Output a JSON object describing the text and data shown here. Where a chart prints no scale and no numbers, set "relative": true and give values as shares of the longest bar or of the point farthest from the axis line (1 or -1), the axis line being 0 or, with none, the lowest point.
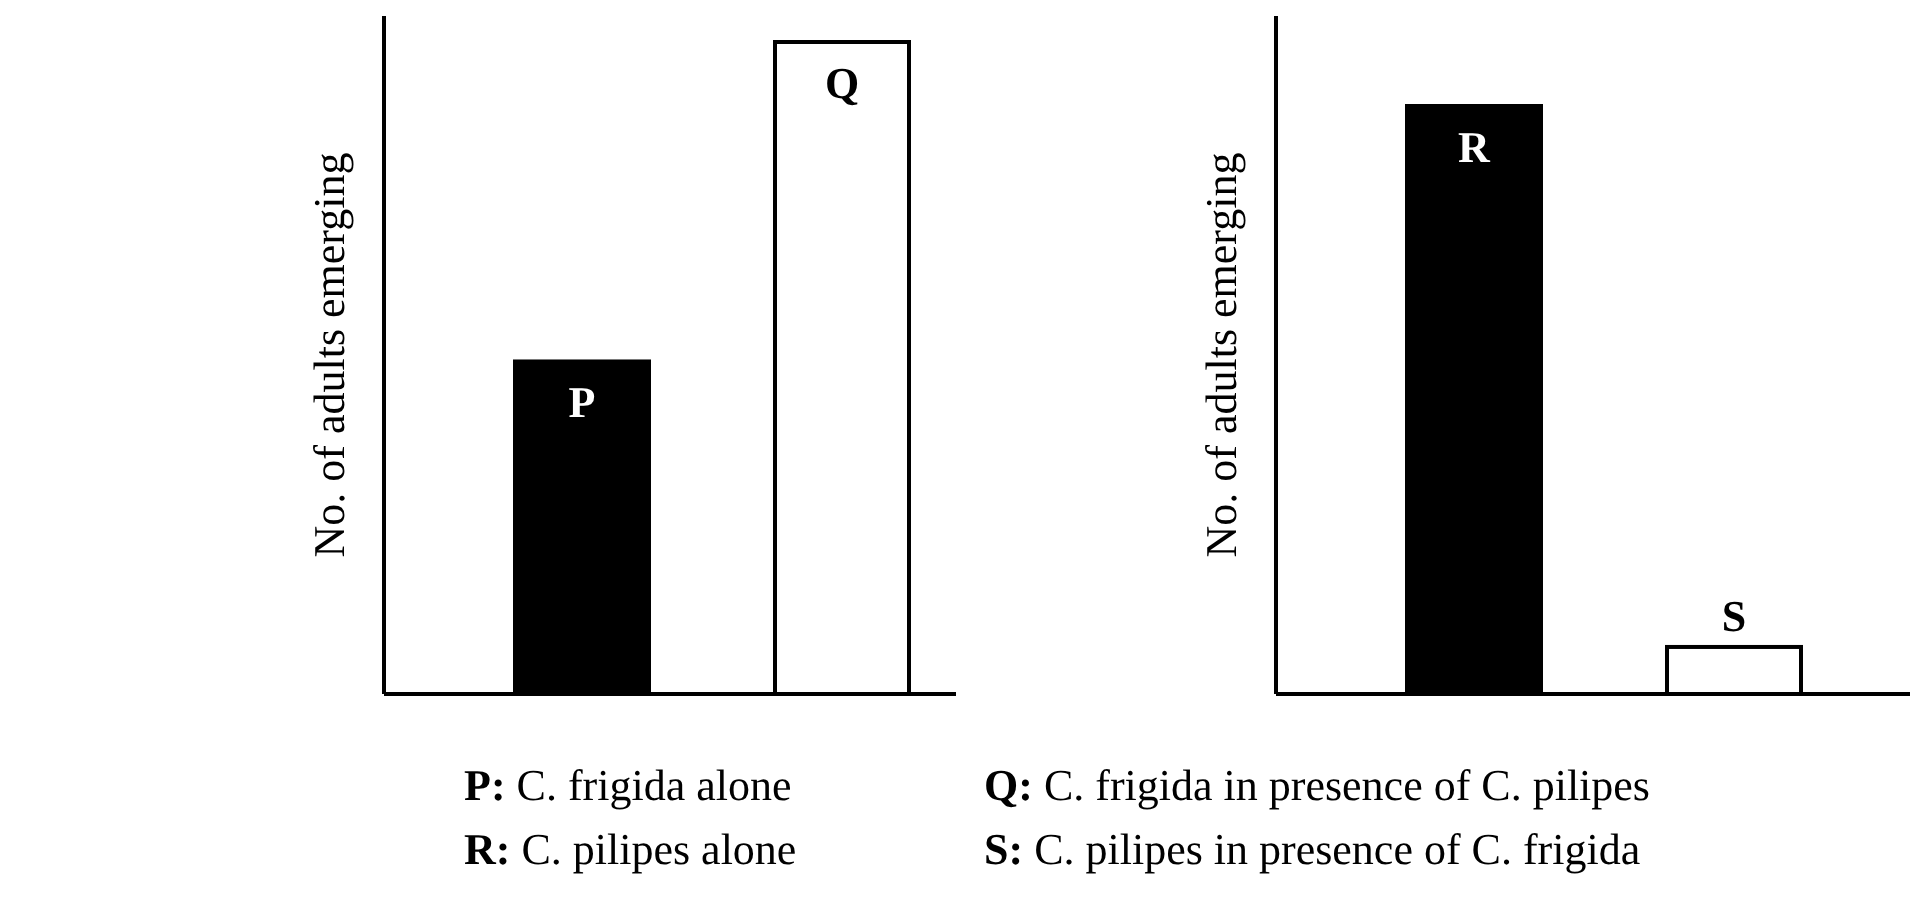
{
  "chart_data": [
    {
      "type": "bar",
      "relative": true,
      "ylabel": "No. of adults emerging",
      "categories": [
        "P",
        "Q"
      ],
      "values": [
        0.51,
        1
      ],
      "colors": [
        "#000000",
        "#ffffff"
      ],
      "annotations": [
        "P: C. frigida alone",
        "Q: C. frigida in presence of C. pilipes",
        "R: C. pilipes alone",
        "S: C. pilipes in presence of C. frigida"
      ]
    },
    {
      "type": "bar",
      "relative": true,
      "ylabel": "No. of adults emerging",
      "categories": [
        "R",
        "S"
      ],
      "values": [
        1,
        0.08
      ],
      "colors": [
        "#000000",
        "#ffffff"
      ]
    }
  ]
}
